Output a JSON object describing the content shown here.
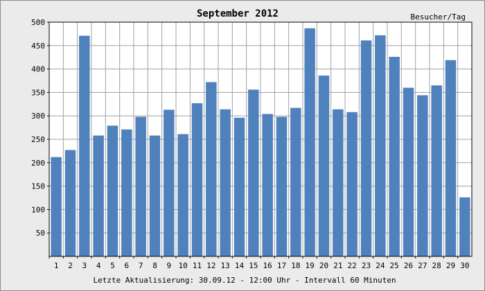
{
  "chart_data": {
    "type": "bar",
    "title": "September 2012",
    "ylabel": "Besucher/Tag",
    "footer": "Letzte Aktualisierung: 30.09.12 - 12:00 Uhr - Intervall 60 Minuten",
    "categories": [
      "1",
      "2",
      "3",
      "4",
      "5",
      "6",
      "7",
      "8",
      "9",
      "10",
      "11",
      "12",
      "13",
      "14",
      "15",
      "16",
      "17",
      "18",
      "19",
      "20",
      "21",
      "22",
      "23",
      "24",
      "25",
      "26",
      "27",
      "28",
      "29",
      "30"
    ],
    "values": [
      212,
      227,
      471,
      258,
      279,
      271,
      298,
      258,
      313,
      261,
      327,
      372,
      314,
      296,
      356,
      304,
      298,
      317,
      487,
      386,
      314,
      308,
      461,
      472,
      426,
      360,
      344,
      365,
      419,
      126
    ],
    "ylim": [
      0,
      500
    ],
    "yticks": [
      50,
      100,
      150,
      200,
      250,
      300,
      350,
      400,
      450,
      500
    ],
    "grid": true,
    "bar_color": "#4f81bd",
    "plot_background": "#ffffff",
    "grid_color": "#a0a0a0"
  }
}
